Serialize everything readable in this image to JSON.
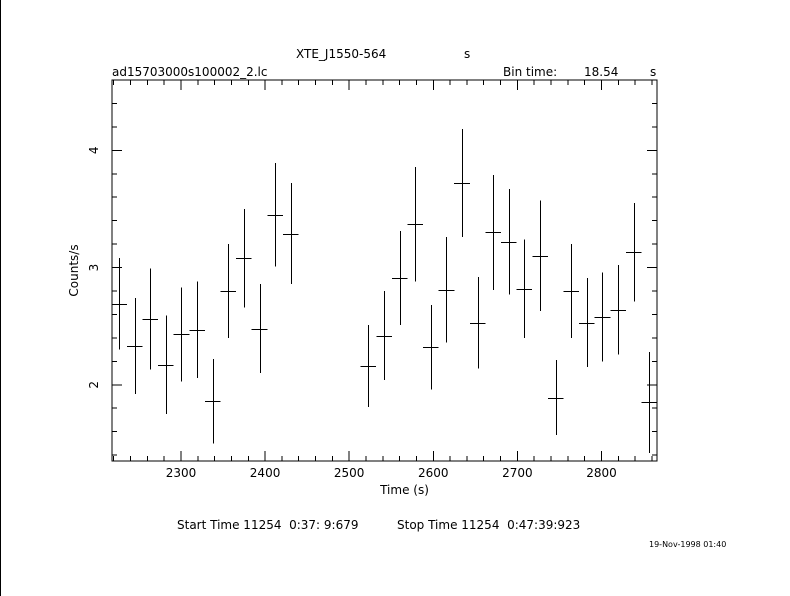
{
  "header": {
    "object": "XTE_J1550-564",
    "object_unit": "s",
    "filename": "ad15703000s100002_2.lc",
    "bin_label": "Bin time:",
    "bin_value": "18.54",
    "bin_unit": "s"
  },
  "footer": {
    "start_time": "Start Time 11254  0:37: 9:679",
    "stop_time": "Stop Time 11254  0:47:39:923",
    "timestamp": "19-Nov-1998 01:40"
  },
  "chart_data": {
    "type": "scatter",
    "xlabel": "Time (s)",
    "ylabel": "Counts/s",
    "xlim": [
      2218,
      2866
    ],
    "ylim": [
      1.35,
      4.6
    ],
    "x_ticks": [
      2300,
      2400,
      2500,
      2600,
      2700,
      2800
    ],
    "y_ticks": [
      2,
      3,
      4
    ],
    "x_minor_step": 20,
    "y_minor_step": 0.2,
    "bin_half_width": 9.27,
    "x": [
      2226.5,
      2245.0,
      2263.6,
      2282.1,
      2300.6,
      2319.2,
      2337.7,
      2356.3,
      2374.8,
      2393.4,
      2411.9,
      2430.5,
      2522.9,
      2541.5,
      2560.0,
      2578.6,
      2597.1,
      2615.7,
      2634.2,
      2652.8,
      2671.3,
      2689.9,
      2708.4,
      2727.0,
      2745.5,
      2764.1,
      2782.6,
      2801.2,
      2819.7,
      2838.3,
      2856.8
    ],
    "y": [
      2.69,
      2.33,
      2.56,
      2.17,
      2.43,
      2.47,
      1.86,
      2.8,
      3.08,
      2.48,
      3.45,
      3.29,
      2.16,
      2.42,
      2.91,
      3.37,
      2.32,
      2.81,
      3.72,
      2.53,
      3.3,
      3.22,
      2.82,
      3.1,
      1.89,
      2.8,
      2.53,
      2.58,
      2.64,
      3.13,
      1.85
    ],
    "y_err": [
      0.39,
      0.41,
      0.43,
      0.42,
      0.4,
      0.41,
      0.36,
      0.4,
      0.42,
      0.38,
      0.44,
      0.43,
      0.35,
      0.38,
      0.4,
      0.49,
      0.36,
      0.45,
      0.46,
      0.39,
      0.49,
      0.45,
      0.42,
      0.47,
      0.32,
      0.4,
      0.38,
      0.38,
      0.38,
      0.42,
      0.43
    ]
  }
}
